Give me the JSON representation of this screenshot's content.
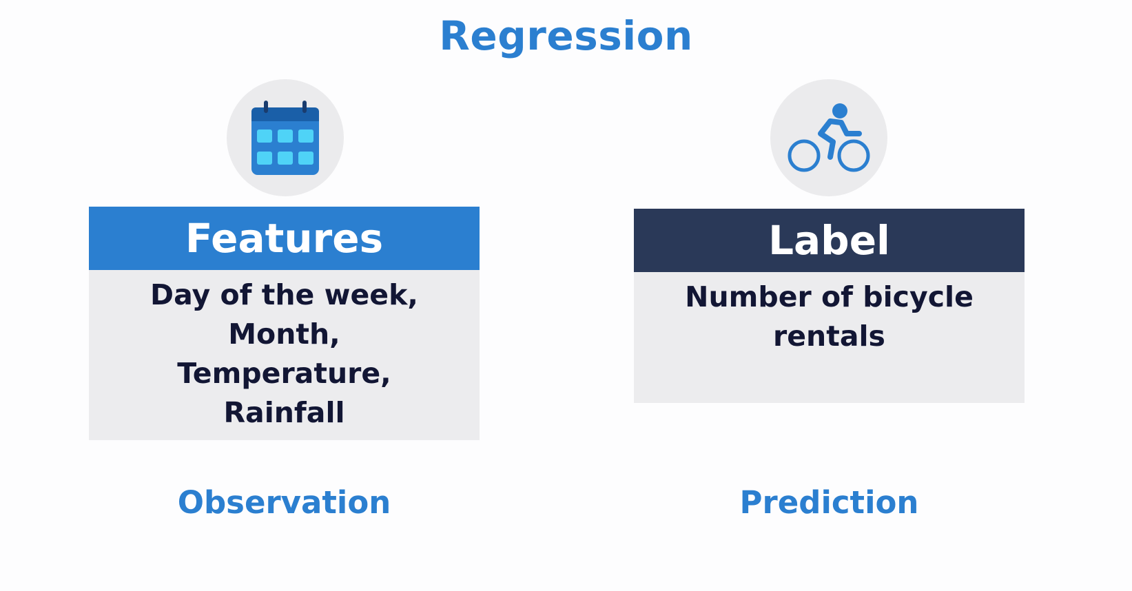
{
  "title": "Regression",
  "features": {
    "heading": "Features",
    "lines": [
      "Day of the week,",
      "Month,",
      "Temperature,",
      "Rainfall"
    ],
    "caption": "Observation",
    "icon": "calendar-icon"
  },
  "label": {
    "heading": "Label",
    "lines": [
      "Number of bicycle",
      "rentals"
    ],
    "caption": "Prediction",
    "icon": "bicycle-icon"
  },
  "colors": {
    "accent_blue": "#2b7fd0",
    "label_navy": "#2a3958",
    "body_gray": "#ececee",
    "text_dark": "#121634",
    "icon_light": "#4fd3f7"
  }
}
